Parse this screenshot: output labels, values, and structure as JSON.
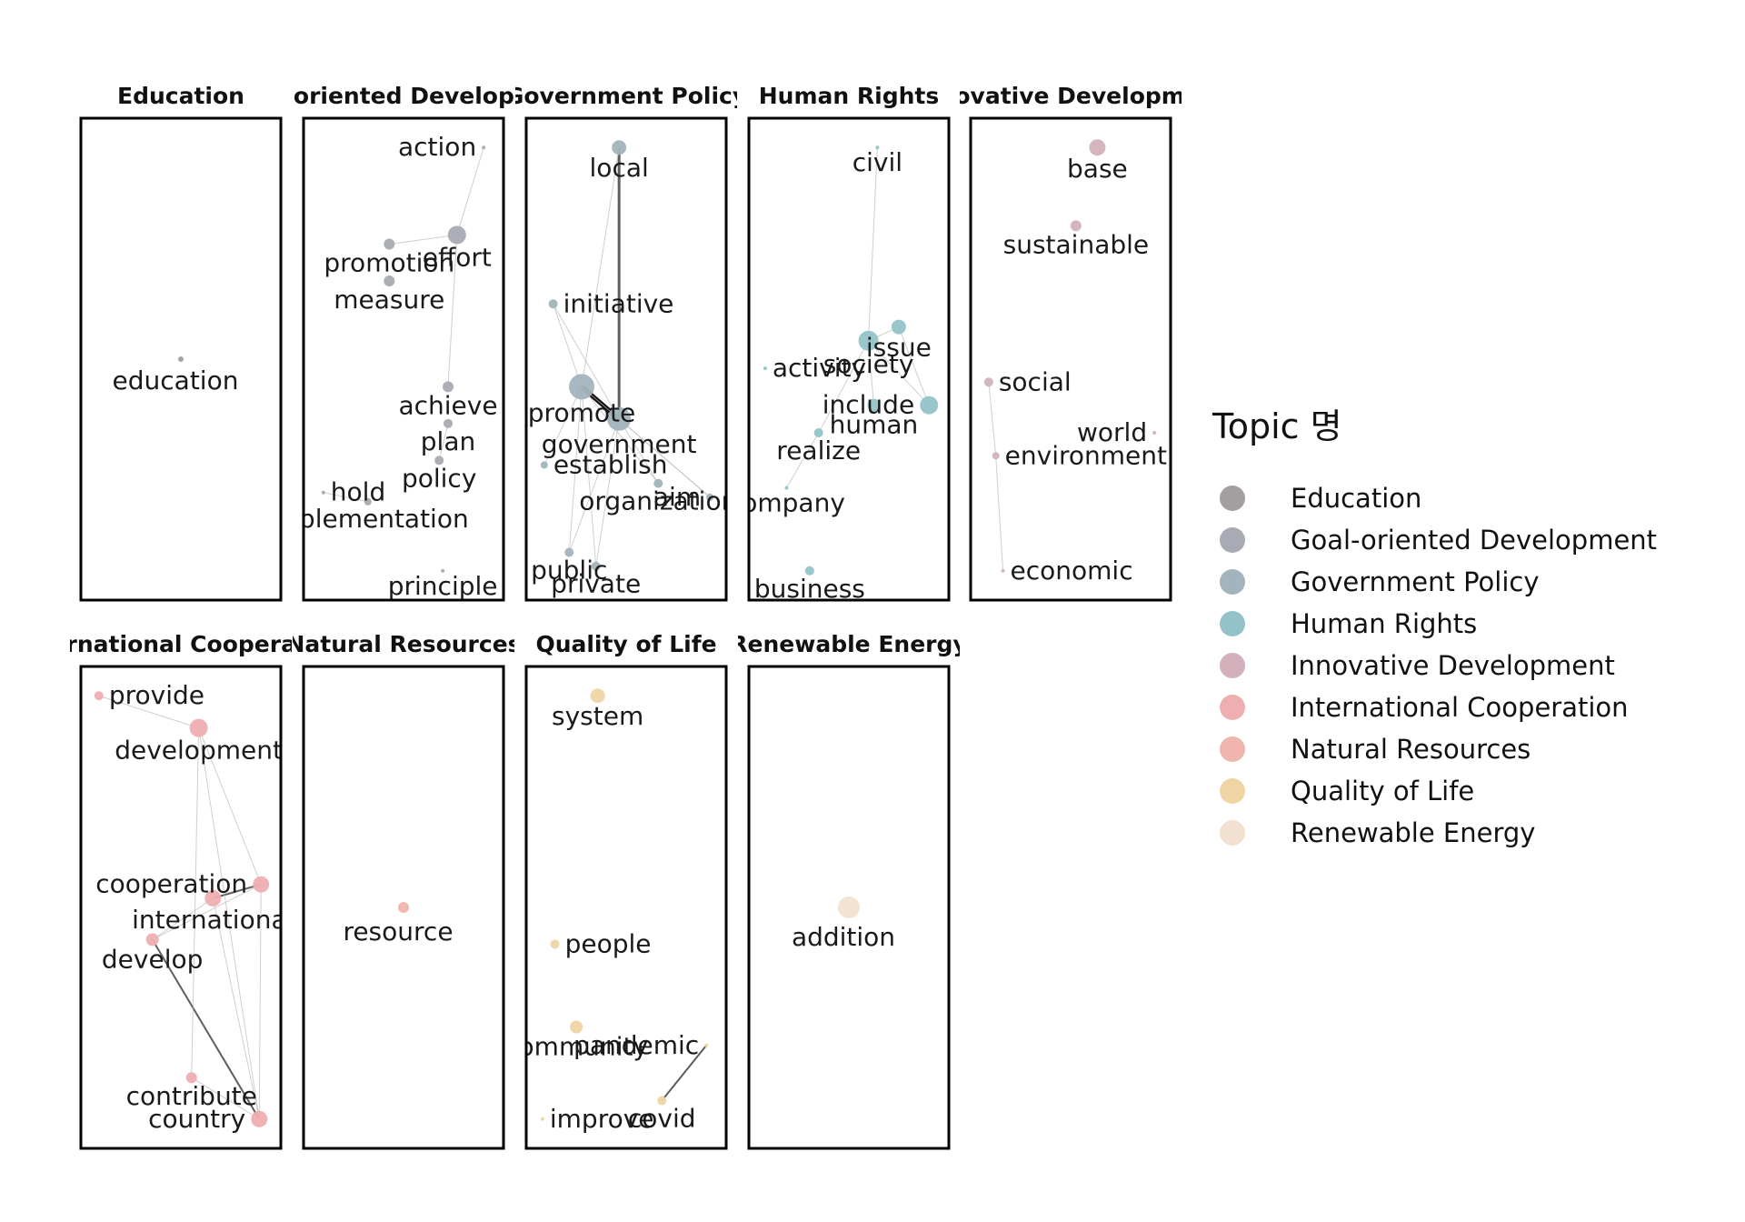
{
  "legend": {
    "title": "Topic 명",
    "items": [
      {
        "label": "Education",
        "color": "#a39e9f"
      },
      {
        "label": "Goal-oriented Development",
        "color": "#a8abb3"
      },
      {
        "label": "Government Policy",
        "color": "#a3b4bd"
      },
      {
        "label": "Human Rights",
        "color": "#93c3c8"
      },
      {
        "label": "Innovative Development",
        "color": "#d3b1ba"
      },
      {
        "label": "International Cooperation",
        "color": "#efaeb0"
      },
      {
        "label": "Natural Resources",
        "color": "#f0b5ac"
      },
      {
        "label": "Quality of Life",
        "color": "#efd5a4"
      },
      {
        "label": "Renewable Energy",
        "color": "#f2e1d1"
      }
    ]
  },
  "chart_data": {
    "type": "network",
    "panels": [
      {
        "title": "Education",
        "color": "#a39e9f",
        "nodes": [
          {
            "id": "education",
            "x": 0.5,
            "y": 0.5,
            "size": 3
          }
        ],
        "edges": []
      },
      {
        "title": "Goal-oriented Development",
        "color": "#a8abb3",
        "nodes": [
          {
            "id": "action",
            "x": 0.95,
            "y": 0.96,
            "size": 2
          },
          {
            "id": "promotion",
            "x": 0.42,
            "y": 0.75,
            "size": 6
          },
          {
            "id": "effort",
            "x": 0.8,
            "y": 0.77,
            "size": 10
          },
          {
            "id": "measure",
            "x": 0.42,
            "y": 0.67,
            "size": 6
          },
          {
            "id": "achieve",
            "x": 0.75,
            "y": 0.44,
            "size": 6
          },
          {
            "id": "plan",
            "x": 0.75,
            "y": 0.36,
            "size": 5
          },
          {
            "id": "policy",
            "x": 0.7,
            "y": 0.28,
            "size": 5
          },
          {
            "id": "hold",
            "x": 0.05,
            "y": 0.21,
            "size": 2
          },
          {
            "id": "implementation",
            "x": 0.3,
            "y": 0.19,
            "size": 4
          },
          {
            "id": "principle",
            "x": 0.72,
            "y": 0.04,
            "size": 2
          }
        ],
        "edges": [
          [
            "action",
            "effort"
          ],
          [
            "effort",
            "promotion"
          ],
          [
            "effort",
            "achieve"
          ],
          [
            "hold",
            "implementation"
          ],
          [
            "plan",
            "policy"
          ]
        ]
      },
      {
        "title": "Government Policy",
        "color": "#a3b4bd",
        "nodes": [
          {
            "id": "local",
            "x": 0.46,
            "y": 0.96,
            "size": 8
          },
          {
            "id": "initiative",
            "x": 0.09,
            "y": 0.62,
            "size": 5
          },
          {
            "id": "promote",
            "x": 0.25,
            "y": 0.44,
            "size": 14
          },
          {
            "id": "government",
            "x": 0.46,
            "y": 0.37,
            "size": 13
          },
          {
            "id": "establish",
            "x": 0.04,
            "y": 0.27,
            "size": 4
          },
          {
            "id": "organization",
            "x": 0.68,
            "y": 0.23,
            "size": 5
          },
          {
            "id": "aim",
            "x": 0.97,
            "y": 0.2,
            "size": 4
          },
          {
            "id": "public",
            "x": 0.18,
            "y": 0.08,
            "size": 5
          },
          {
            "id": "private",
            "x": 0.33,
            "y": 0.05,
            "size": 5
          }
        ],
        "edges": [
          [
            "local",
            "government",
            3
          ],
          [
            "promote",
            "government",
            4
          ],
          [
            "local",
            "promote",
            1
          ],
          [
            "initiative",
            "promote",
            1
          ],
          [
            "initiative",
            "government",
            1
          ],
          [
            "promote",
            "establish",
            1
          ],
          [
            "promote",
            "public",
            1
          ],
          [
            "promote",
            "private",
            1
          ],
          [
            "promote",
            "organization",
            1
          ],
          [
            "promote",
            "aim",
            1
          ],
          [
            "government",
            "organization",
            1
          ],
          [
            "government",
            "public",
            1
          ],
          [
            "government",
            "private",
            1
          ],
          [
            "government",
            "aim",
            1
          ]
        ]
      },
      {
        "title": "Human Rights",
        "color": "#93c3c8",
        "nodes": [
          {
            "id": "civil",
            "x": 0.66,
            "y": 0.96,
            "size": 2
          },
          {
            "id": "issue",
            "x": 0.78,
            "y": 0.57,
            "size": 8
          },
          {
            "id": "society",
            "x": 0.61,
            "y": 0.54,
            "size": 11
          },
          {
            "id": "activity",
            "x": 0.03,
            "y": 0.48,
            "size": 2
          },
          {
            "id": "human",
            "x": 0.64,
            "y": 0.4,
            "size": 7
          },
          {
            "id": "include",
            "x": 0.95,
            "y": 0.4,
            "size": 10
          },
          {
            "id": "realize",
            "x": 0.33,
            "y": 0.34,
            "size": 5
          },
          {
            "id": "company",
            "x": 0.15,
            "y": 0.22,
            "size": 2
          },
          {
            "id": "business",
            "x": 0.28,
            "y": 0.04,
            "size": 5
          }
        ],
        "edges": [
          [
            "civil",
            "society"
          ],
          [
            "society",
            "issue"
          ],
          [
            "society",
            "include"
          ],
          [
            "society",
            "human"
          ],
          [
            "issue",
            "include"
          ],
          [
            "society",
            "realize"
          ],
          [
            "realize",
            "company"
          ]
        ]
      },
      {
        "title": "Innovative Development",
        "color": "#d3b1ba",
        "nodes": [
          {
            "id": "base",
            "x": 0.65,
            "y": 0.96,
            "size": 9
          },
          {
            "id": "sustainable",
            "x": 0.53,
            "y": 0.79,
            "size": 6
          },
          {
            "id": "social",
            "x": 0.04,
            "y": 0.45,
            "size": 5
          },
          {
            "id": "world",
            "x": 0.97,
            "y": 0.34,
            "size": 2
          },
          {
            "id": "environment",
            "x": 0.08,
            "y": 0.29,
            "size": 4
          },
          {
            "id": "economic",
            "x": 0.12,
            "y": 0.04,
            "size": 2
          }
        ],
        "edges": [
          [
            "social",
            "environment"
          ],
          [
            "environment",
            "economic"
          ]
        ]
      },
      {
        "title": "International Cooperation",
        "color": "#efaeb0",
        "nodes": [
          {
            "id": "provide",
            "x": 0.04,
            "y": 0.96,
            "size": 5
          },
          {
            "id": "development",
            "x": 0.6,
            "y": 0.89,
            "size": 10
          },
          {
            "id": "cooperation",
            "x": 0.95,
            "y": 0.55,
            "size": 9
          },
          {
            "id": "international",
            "x": 0.68,
            "y": 0.52,
            "size": 9
          },
          {
            "id": "develop",
            "x": 0.34,
            "y": 0.43,
            "size": 7
          },
          {
            "id": "contribute",
            "x": 0.56,
            "y": 0.13,
            "size": 6
          },
          {
            "id": "country",
            "x": 0.94,
            "y": 0.04,
            "size": 9
          }
        ],
        "edges": [
          [
            "international",
            "cooperation",
            2
          ],
          [
            "develop",
            "country",
            2
          ],
          [
            "development",
            "country",
            1.5
          ],
          [
            "international",
            "country",
            1.5
          ],
          [
            "development",
            "cooperation",
            1
          ],
          [
            "development",
            "contribute",
            1
          ],
          [
            "cooperation",
            "country",
            1
          ],
          [
            "develop",
            "international",
            1
          ],
          [
            "provide",
            "development",
            0.6
          ],
          [
            "develop",
            "cooperation",
            0.6
          ],
          [
            "contribute",
            "country",
            0.6
          ]
        ]
      },
      {
        "title": "Natural Resources",
        "color": "#f0b5ac",
        "nodes": [
          {
            "id": "resource",
            "x": 0.5,
            "y": 0.5,
            "size": 6
          }
        ],
        "edges": []
      },
      {
        "title": "Quality of Life",
        "color": "#efd5a4",
        "nodes": [
          {
            "id": "system",
            "x": 0.34,
            "y": 0.96,
            "size": 8
          },
          {
            "id": "people",
            "x": 0.1,
            "y": 0.42,
            "size": 5
          },
          {
            "id": "community",
            "x": 0.22,
            "y": 0.24,
            "size": 7
          },
          {
            "id": "pandemic",
            "x": 0.95,
            "y": 0.2,
            "size": 2
          },
          {
            "id": "covid",
            "x": 0.7,
            "y": 0.08,
            "size": 5
          },
          {
            "id": "improve",
            "x": 0.03,
            "y": 0.04,
            "size": 2
          }
        ],
        "edges": [
          [
            "pandemic",
            "covid",
            2
          ]
        ]
      },
      {
        "title": "Renewable Energy",
        "color": "#f2e1d1",
        "nodes": [
          {
            "id": "addition",
            "x": 0.5,
            "y": 0.5,
            "size": 12
          }
        ],
        "edges": []
      }
    ]
  }
}
